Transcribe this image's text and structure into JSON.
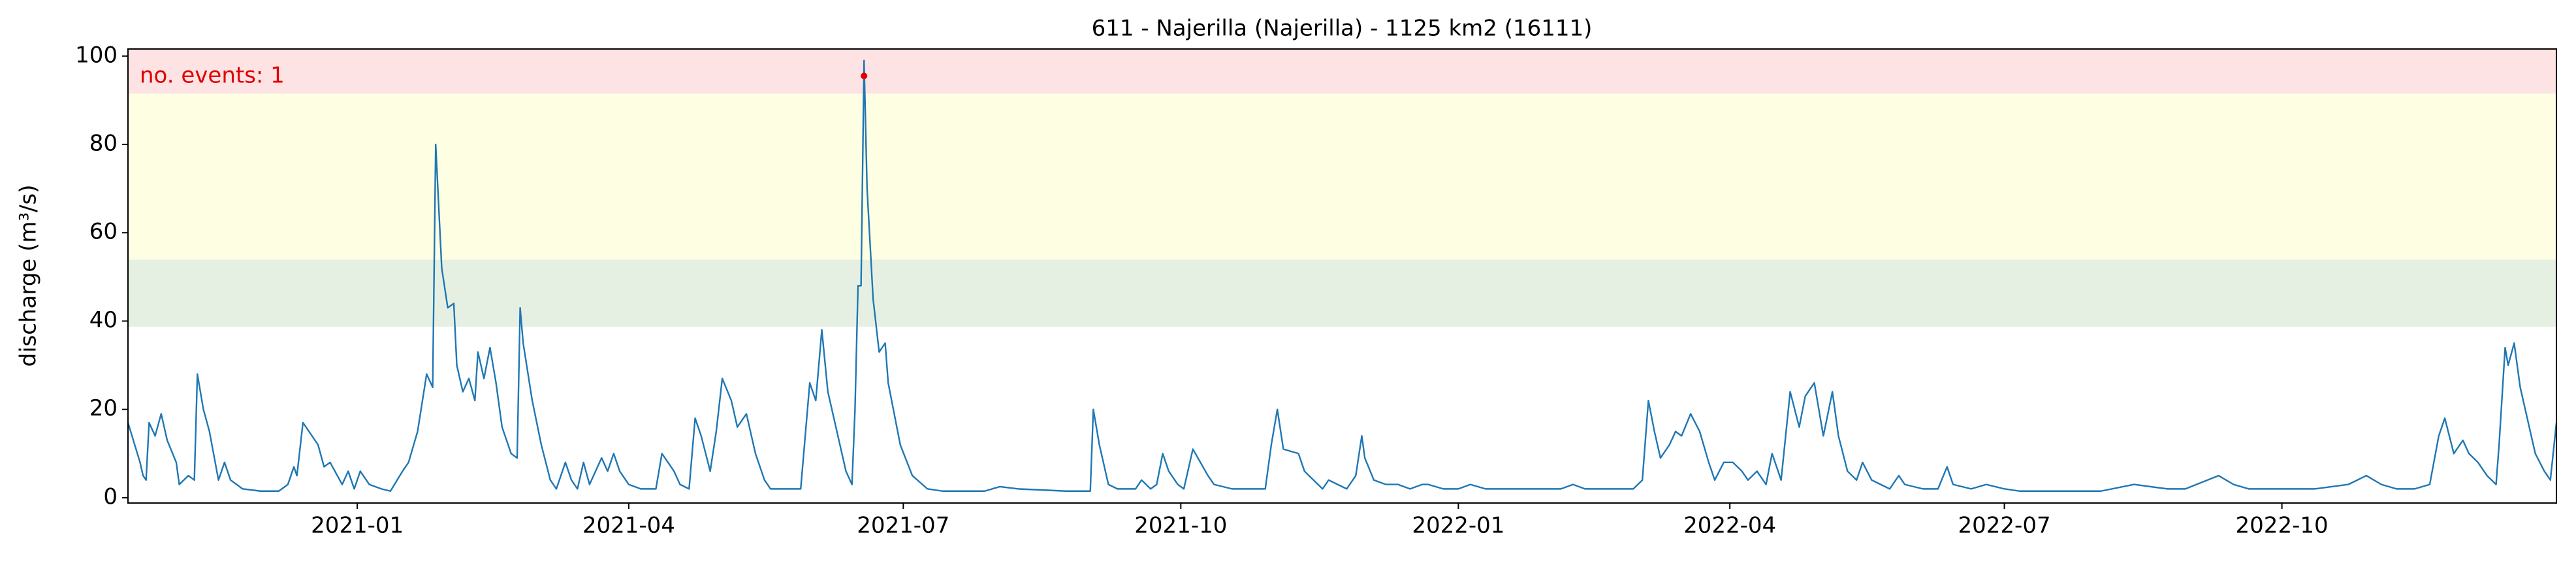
{
  "chart_data": {
    "type": "line",
    "title": "611 - Najerilla (Najerilla) - 1125 km2 (16111)",
    "y_label": "discharge (m³/s)",
    "annotation": "no. events: 1",
    "annotation_color": "#e00000",
    "xlim": [
      -76,
      729
    ],
    "ylim": [
      -1.2,
      101.6
    ],
    "xticks": [
      {
        "value": 0,
        "label": "2021-01"
      },
      {
        "value": 90,
        "label": "2021-04"
      },
      {
        "value": 181,
        "label": "2021-07"
      },
      {
        "value": 273,
        "label": "2021-10"
      },
      {
        "value": 365,
        "label": "2022-01"
      },
      {
        "value": 455,
        "label": "2022-04"
      },
      {
        "value": 546,
        "label": "2022-07"
      },
      {
        "value": 638,
        "label": "2022-10"
      }
    ],
    "yticks": [
      0,
      20,
      40,
      60,
      80,
      100
    ],
    "grid": false,
    "thresholds": [
      38.7,
      53.9,
      91.5
    ],
    "band_colors": [
      "#e5f0e3",
      "#fefee3",
      "#fee3e4"
    ],
    "x": [
      -76,
      -72,
      -71,
      -70,
      -69,
      -67,
      -65,
      -63,
      -60,
      -59,
      -56,
      -54,
      -53,
      -51,
      -49,
      -46,
      -44,
      -42,
      -38,
      -32,
      -26,
      -23,
      -21,
      -20,
      -18,
      -15,
      -13,
      -11,
      -9,
      -5,
      -3,
      -1,
      1,
      4,
      8,
      11,
      15,
      17,
      20,
      23,
      25,
      26,
      28,
      30,
      32,
      33,
      35,
      37,
      39,
      40,
      42,
      44,
      46,
      48,
      51,
      53,
      54,
      55,
      58,
      61,
      64,
      66,
      69,
      71,
      73,
      75,
      77,
      81,
      83,
      85,
      87,
      90,
      94,
      99,
      101,
      105,
      107,
      110,
      112,
      114,
      117,
      119,
      121,
      124,
      126,
      129,
      132,
      135,
      137,
      140,
      143,
      147,
      150,
      152,
      154,
      156,
      159,
      162,
      164,
      165,
      166,
      167,
      168,
      169,
      171,
      173,
      175,
      176,
      180,
      184,
      189,
      194,
      208,
      213,
      219,
      235,
      243,
      244,
      246,
      249,
      252,
      258,
      260,
      263,
      265,
      267,
      269,
      272,
      274,
      277,
      282,
      284,
      290,
      295,
      301,
      303,
      305,
      307,
      312,
      314,
      317,
      320,
      322,
      325,
      328,
      331,
      333,
      334,
      337,
      341,
      345,
      349,
      353,
      355,
      360,
      365,
      369,
      374,
      378,
      388,
      393,
      399,
      403,
      407,
      412,
      423,
      426,
      428,
      430,
      432,
      435,
      437,
      439,
      442,
      445,
      448,
      450,
      453,
      456,
      459,
      461,
      464,
      467,
      469,
      472,
      475,
      478,
      480,
      483,
      486,
      489,
      491,
      494,
      497,
      499,
      502,
      505,
      508,
      511,
      513,
      519,
      524,
      527,
      529,
      535,
      540,
      546,
      551,
      578,
      589,
      600,
      606,
      617,
      622,
      627,
      638,
      649,
      660,
      666,
      671,
      676,
      682,
      687,
      690,
      692,
      695,
      698,
      700,
      703,
      706,
      709,
      710,
      712,
      713,
      715,
      717,
      720,
      722,
      725,
      727,
      729
    ],
    "series": [
      {
        "name": "discharge",
        "color": "#1f77b4",
        "values": [
          17,
          8,
          5,
          4,
          17,
          14,
          19,
          13,
          8,
          3,
          5,
          4,
          28,
          20,
          15,
          4,
          8,
          4,
          2,
          1.5,
          1.5,
          3,
          7,
          5,
          17,
          14,
          12,
          7,
          8,
          3,
          6,
          2,
          6,
          3,
          2,
          1.5,
          6,
          8,
          15,
          28,
          25,
          80,
          52,
          43,
          44,
          30,
          24,
          27,
          22,
          33,
          27,
          34,
          26,
          16,
          10,
          9,
          43,
          35,
          22,
          12,
          4,
          2,
          8,
          4,
          2,
          8,
          3,
          9,
          6,
          10,
          6,
          3,
          2,
          2,
          10,
          6,
          3,
          2,
          18,
          14,
          6,
          15,
          27,
          22,
          16,
          19,
          10,
          4,
          2,
          2,
          2,
          2,
          26,
          22,
          38,
          24,
          15,
          6,
          3,
          20,
          48,
          48,
          99,
          70,
          45,
          33,
          35,
          26,
          12,
          5,
          2,
          1.5,
          1.5,
          2.5,
          2,
          1.5,
          1.5,
          20,
          12,
          3,
          2,
          2,
          4,
          2,
          3,
          10,
          6,
          3,
          2,
          11,
          5,
          3,
          2,
          2,
          2,
          12,
          20,
          11,
          10,
          6,
          4,
          2,
          4,
          3,
          2,
          5,
          14,
          9,
          4,
          3,
          3,
          2,
          3,
          3,
          2,
          2,
          3,
          2,
          2,
          2,
          2,
          2,
          3,
          2,
          2,
          2,
          4,
          22,
          15,
          9,
          12,
          15,
          14,
          19,
          15,
          8,
          4,
          8,
          8,
          6,
          4,
          6,
          3,
          10,
          4,
          24,
          16,
          23,
          26,
          14,
          24,
          14,
          6,
          4,
          8,
          4,
          3,
          2,
          5,
          3,
          2,
          2,
          7,
          3,
          2,
          3,
          2,
          1.5,
          1.5,
          3,
          2,
          2,
          5,
          3,
          2,
          2,
          2,
          3,
          5,
          3,
          2,
          2,
          3,
          14,
          18,
          10,
          13,
          10,
          8,
          5,
          3,
          12,
          34,
          30,
          35,
          25,
          16,
          10,
          6,
          4,
          17
        ]
      }
    ],
    "events": {
      "x": [
        168
      ],
      "values": [
        95.5
      ],
      "color": "#e00000"
    }
  }
}
